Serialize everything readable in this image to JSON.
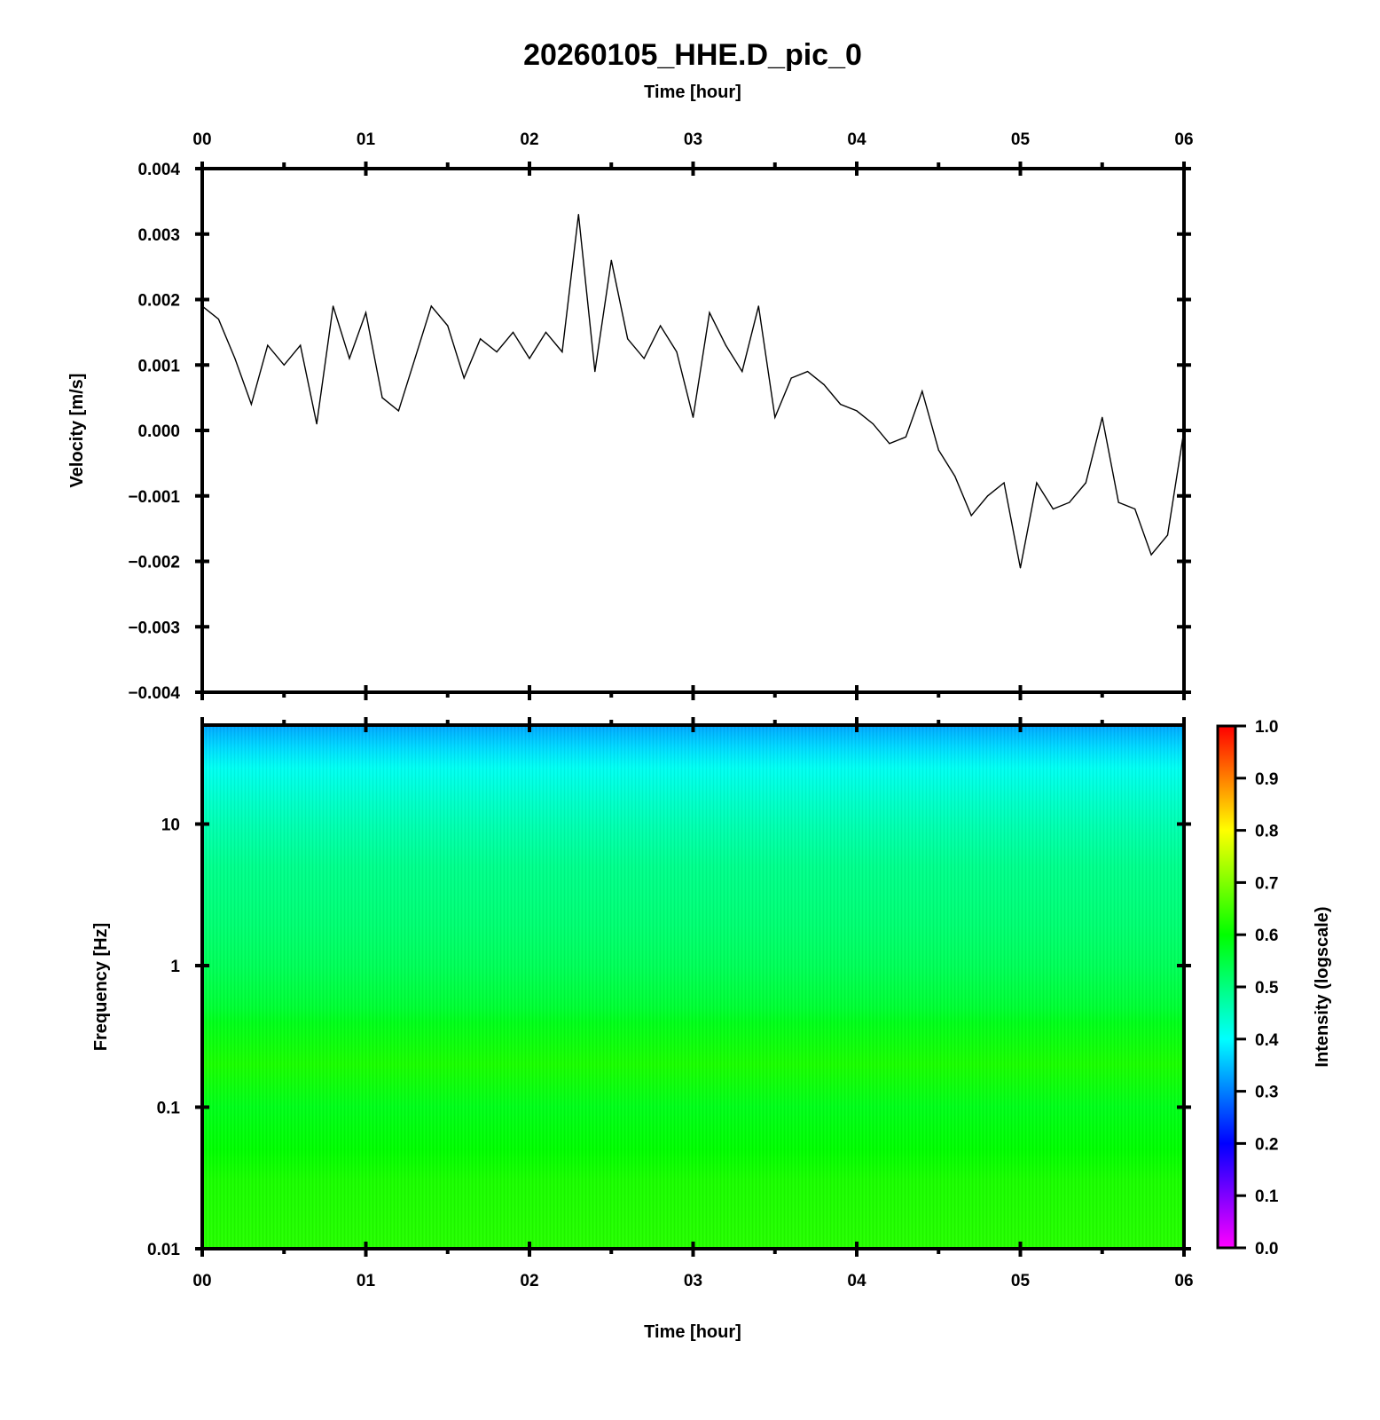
{
  "figure": {
    "title": "20260105_HHE.D_pic_0"
  },
  "chart_data": [
    {
      "type": "line",
      "panel": "waveform",
      "title": "20260105_HHE.D_pic_0",
      "top_xlabel": "Time [hour]",
      "ylabel": "Velocity [m/s]",
      "xlim": [
        0,
        6
      ],
      "ylim": [
        -0.004,
        0.004
      ],
      "x_ticks": [
        "00",
        "01",
        "02",
        "03",
        "04",
        "05",
        "06"
      ],
      "y_ticks": [
        "0.004",
        "0.003",
        "0.002",
        "0.001",
        "0.000",
        "−0.001",
        "−0.002",
        "−0.003",
        "−0.004"
      ],
      "grid": false,
      "line_color": "#000000",
      "series": [
        {
          "x": [
            0.0,
            0.1,
            0.2,
            0.3,
            0.4,
            0.5,
            0.6,
            0.7,
            0.8,
            0.9,
            1.0,
            1.1,
            1.2,
            1.3,
            1.4,
            1.5,
            1.6,
            1.7,
            1.8,
            1.9,
            2.0,
            2.1,
            2.2,
            2.3,
            2.4,
            2.5,
            2.6,
            2.7,
            2.8,
            2.9,
            3.0,
            3.1,
            3.2,
            3.3,
            3.4,
            3.5,
            3.6,
            3.7,
            3.8,
            3.9,
            4.0,
            4.1,
            4.2,
            4.3,
            4.4,
            4.5,
            4.6,
            4.7,
            4.8,
            4.9,
            5.0,
            5.1,
            5.2,
            5.3,
            5.4,
            5.5,
            5.6,
            5.7,
            5.8,
            5.9,
            6.0
          ],
          "y": [
            0.0019,
            0.0017,
            0.0011,
            0.0004,
            0.0013,
            0.001,
            0.0013,
            0.0001,
            0.0019,
            0.0011,
            0.0018,
            0.0005,
            0.0003,
            0.0011,
            0.0019,
            0.0016,
            0.0008,
            0.0014,
            0.0012,
            0.0015,
            0.0011,
            0.0015,
            0.0012,
            0.0033,
            0.0009,
            0.0026,
            0.0014,
            0.0011,
            0.0016,
            0.0012,
            0.0002,
            0.0018,
            0.0013,
            0.0009,
            0.0019,
            0.0002,
            0.0008,
            0.0009,
            0.0007,
            0.0004,
            0.0003,
            0.0001,
            -0.0002,
            -0.0001,
            0.0006,
            -0.0003,
            -0.0007,
            -0.0013,
            -0.001,
            -0.0008,
            -0.0021,
            -0.0008,
            -0.0012,
            -0.0011,
            -0.0008,
            0.0002,
            -0.0011,
            -0.0012,
            -0.0019,
            -0.0016,
            0.0
          ]
        }
      ]
    },
    {
      "type": "heatmap",
      "panel": "spectrogram",
      "xlabel": "Time [hour]",
      "ylabel": "Frequency [Hz]",
      "y_scale": "log",
      "xlim": [
        0,
        6
      ],
      "ylim": [
        0.01,
        50
      ],
      "x_ticks": [
        "00",
        "01",
        "02",
        "03",
        "04",
        "05",
        "06"
      ],
      "y_ticks": [
        "10",
        "1",
        "0.1",
        "0.01"
      ],
      "frequency_hz": [
        50,
        35,
        25,
        15,
        10,
        5,
        2,
        1,
        0.5,
        0.4,
        0.2,
        0.1,
        0.05,
        0.03,
        0.01
      ],
      "intensity": [
        0.33,
        0.37,
        0.41,
        0.44,
        0.46,
        0.49,
        0.51,
        0.53,
        0.56,
        0.58,
        0.62,
        0.58,
        0.6,
        0.62,
        0.63
      ],
      "colorbar": {
        "label": "Intensity (logscale)",
        "range": [
          0.0,
          1.0
        ],
        "ticks": [
          "1.0",
          "0.9",
          "0.8",
          "0.7",
          "0.6",
          "0.5",
          "0.4",
          "0.3",
          "0.2",
          "0.1",
          "0.0"
        ],
        "colormap": [
          "#ff00ff",
          "#0000ff",
          "#00ffff",
          "#00ff00",
          "#ffff00",
          "#ff0000"
        ]
      }
    }
  ]
}
